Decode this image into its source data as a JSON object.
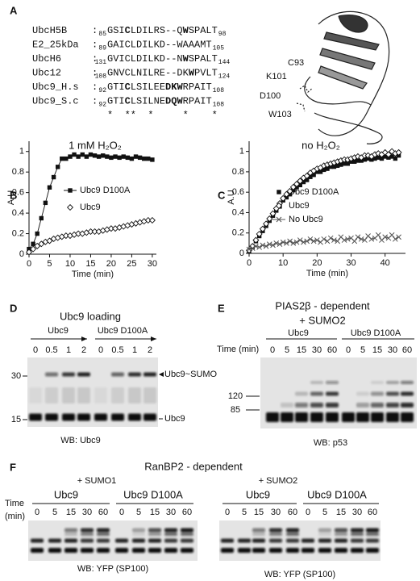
{
  "panel_labels": [
    "A",
    "B",
    "C",
    "D",
    "E",
    "F"
  ],
  "alignment": {
    "separator": ":",
    "rows": [
      {
        "name": "UbcH5B",
        "start": 85,
        "end": 98,
        "segments": [
          {
            "t": "GSI"
          },
          {
            "t": "C",
            "bold": true
          },
          {
            "t": "LDILRS--Q"
          },
          {
            "t": "W",
            "bold": true
          },
          {
            "t": "SPALT"
          }
        ]
      },
      {
        "name": "E2_25kDa",
        "start": 89,
        "end": 105,
        "segments": [
          {
            "t": "GAICLDILKD--WAAAMT"
          }
        ]
      },
      {
        "name": "UbcH6",
        "start": 131,
        "end": 144,
        "segments": [
          {
            "t": "GVICLDILKD--N"
          },
          {
            "t": "W",
            "bold": true
          },
          {
            "t": "SPALT"
          }
        ]
      },
      {
        "name": "Ubc12",
        "start": 108,
        "end": 124,
        "segments": [
          {
            "t": "GNVCLNILRE--DK"
          },
          {
            "t": "W",
            "bold": true
          },
          {
            "t": "PVLT"
          }
        ]
      },
      {
        "name": "Ubc9_H.s",
        "start": 92,
        "end": 108,
        "segments": [
          {
            "t": "GTI"
          },
          {
            "t": "C",
            "bold": true
          },
          {
            "t": "LSILEE"
          },
          {
            "t": "DK",
            "bold": true
          },
          {
            "t": "W",
            "bold": true
          },
          {
            "t": "RPAIT"
          }
        ]
      },
      {
        "name": "Ubc9_S.c",
        "start": 92,
        "end": 108,
        "segments": [
          {
            "t": "GTI"
          },
          {
            "t": "C",
            "bold": true
          },
          {
            "t": "LSILNE"
          },
          {
            "t": "DQ",
            "bold": true
          },
          {
            "t": "W",
            "bold": true
          },
          {
            "t": "RPAIT"
          }
        ]
      }
    ],
    "conservation": "*  **  *     *    *"
  },
  "structure_labels": [
    "C93",
    "K101",
    "D100",
    "W103"
  ],
  "chart_data": [
    {
      "type": "scatter",
      "title": "1 mM H₂O₂",
      "x_label": "Time (min)",
      "y_label": "A.U",
      "xlim": [
        0,
        31
      ],
      "ylim": [
        0,
        1.1
      ],
      "xticks": [
        0,
        5,
        10,
        15,
        20,
        25,
        30
      ],
      "yticks": [
        0,
        0.2,
        0.4,
        0.6,
        0.8,
        1
      ],
      "x": [
        0,
        1,
        2,
        3,
        4,
        5,
        6,
        7,
        8,
        9,
        10,
        11,
        12,
        13,
        14,
        15,
        16,
        17,
        18,
        19,
        20,
        21,
        22,
        23,
        24,
        25,
        26,
        27,
        28,
        29,
        30
      ],
      "series": [
        {
          "name": "Ubc9 D100A",
          "color": "#111111",
          "marker": "square",
          "line": true,
          "values": [
            0.05,
            0.1,
            0.2,
            0.35,
            0.5,
            0.65,
            0.75,
            0.85,
            0.93,
            0.93,
            0.95,
            0.97,
            0.95,
            0.97,
            0.95,
            0.97,
            0.96,
            0.95,
            0.96,
            0.95,
            0.94,
            0.95,
            0.94,
            0.95,
            0.94,
            0.93,
            0.95,
            0.94,
            0.93,
            0.93,
            0.92
          ]
        },
        {
          "name": "Ubc9",
          "color": "#111111",
          "marker": "diamond",
          "line": false,
          "values": [
            0.02,
            0.05,
            0.08,
            0.1,
            0.12,
            0.13,
            0.15,
            0.16,
            0.17,
            0.18,
            0.18,
            0.19,
            0.2,
            0.2,
            0.21,
            0.22,
            0.22,
            0.22,
            0.23,
            0.24,
            0.25,
            0.25,
            0.26,
            0.27,
            0.28,
            0.29,
            0.3,
            0.31,
            0.32,
            0.33,
            0.33
          ]
        }
      ]
    },
    {
      "type": "scatter",
      "title": "no H₂O₂",
      "x_label": "Time (min)",
      "y_label": "A.U",
      "xlim": [
        0,
        46
      ],
      "ylim": [
        0,
        1.1
      ],
      "xticks": [
        0,
        10,
        20,
        30,
        40
      ],
      "yticks": [
        0,
        0.2,
        0.4,
        0.6,
        0.8,
        1
      ],
      "x": [
        0,
        1,
        2,
        3,
        4,
        5,
        6,
        7,
        8,
        9,
        10,
        11,
        12,
        13,
        14,
        15,
        16,
        17,
        18,
        19,
        20,
        21,
        22,
        23,
        24,
        25,
        26,
        27,
        28,
        29,
        30,
        31,
        32,
        33,
        34,
        35,
        36,
        37,
        38,
        39,
        40,
        41,
        42,
        43,
        44
      ],
      "series": [
        {
          "name": "Ubc9 D100A",
          "color": "#111111",
          "marker": "square",
          "line": false,
          "values": [
            0.02,
            0.06,
            0.12,
            0.17,
            0.22,
            0.27,
            0.32,
            0.37,
            0.42,
            0.46,
            0.52,
            0.55,
            0.58,
            0.62,
            0.65,
            0.67,
            0.7,
            0.72,
            0.75,
            0.77,
            0.8,
            0.8,
            0.82,
            0.83,
            0.85,
            0.85,
            0.86,
            0.87,
            0.88,
            0.88,
            0.9,
            0.9,
            0.91,
            0.91,
            0.92,
            0.93,
            0.92,
            0.93,
            0.94,
            0.93,
            0.95,
            0.94,
            0.95,
            0.93,
            0.96
          ]
        },
        {
          "name": "Ubc9",
          "color": "#111111",
          "marker": "diamond",
          "line": false,
          "values": [
            0.03,
            0.07,
            0.13,
            0.19,
            0.24,
            0.29,
            0.34,
            0.39,
            0.44,
            0.49,
            0.54,
            0.58,
            0.61,
            0.65,
            0.68,
            0.71,
            0.74,
            0.76,
            0.79,
            0.81,
            0.83,
            0.84,
            0.86,
            0.87,
            0.88,
            0.89,
            0.9,
            0.91,
            0.92,
            0.92,
            0.93,
            0.94,
            0.95,
            0.94,
            0.96,
            0.96,
            0.95,
            0.97,
            0.98,
            0.97,
            0.99,
            0.97,
            1.0,
            0.98,
            0.99
          ]
        },
        {
          "name": "No Ubc9",
          "color": "#555555",
          "marker": "x",
          "line": true,
          "values": [
            0.04,
            0.05,
            0.07,
            0.06,
            0.08,
            0.07,
            0.09,
            0.08,
            0.1,
            0.09,
            0.11,
            0.1,
            0.12,
            0.1,
            0.11,
            0.13,
            0.11,
            0.12,
            0.14,
            0.12,
            0.13,
            0.11,
            0.14,
            0.12,
            0.15,
            0.13,
            0.12,
            0.16,
            0.13,
            0.14,
            0.15,
            0.12,
            0.16,
            0.14,
            0.13,
            0.17,
            0.14,
            0.15,
            0.18,
            0.13,
            0.16,
            0.15,
            0.18,
            0.14,
            0.16
          ]
        }
      ]
    }
  ],
  "gel_d": {
    "title": "Ubc9 loading",
    "groups": [
      "Ubc9",
      "Ubc9 D100A"
    ],
    "lanes": [
      0,
      0.5,
      1,
      2,
      0,
      0.5,
      1,
      2
    ],
    "markers": [
      30,
      15
    ],
    "band_labels": [
      "Ubc9~SUMO",
      "Ubc9"
    ],
    "blot": "WB: Ubc9"
  },
  "gel_e": {
    "title": [
      "PIAS2β - dependent",
      "+ SUMO2"
    ],
    "groups": [
      "Ubc9",
      "Ubc9 D100A"
    ],
    "time_label": "Time (min)",
    "lanes": [
      0,
      5,
      15,
      30,
      60,
      0,
      5,
      15,
      30,
      60
    ],
    "markers": [
      120,
      85
    ],
    "blot": "WB: p53"
  },
  "gel_f": {
    "title": "RanBP2 - dependent",
    "time_label": [
      "Time",
      "(min)"
    ],
    "blots": [
      {
        "sumo": "+ SUMO1",
        "groups": [
          "Ubc9",
          "Ubc9 D100A"
        ],
        "lanes": [
          0,
          5,
          15,
          30,
          60,
          0,
          5,
          15,
          30,
          60
        ],
        "blot": "WB: YFP (SP100)"
      },
      {
        "sumo": "+ SUMO2",
        "groups": [
          "Ubc9",
          "Ubc9 D100A"
        ],
        "lanes": [
          0,
          5,
          15,
          30,
          60,
          0,
          5,
          15,
          30,
          60
        ],
        "blot": "WB: YFP (SP100)"
      }
    ]
  }
}
